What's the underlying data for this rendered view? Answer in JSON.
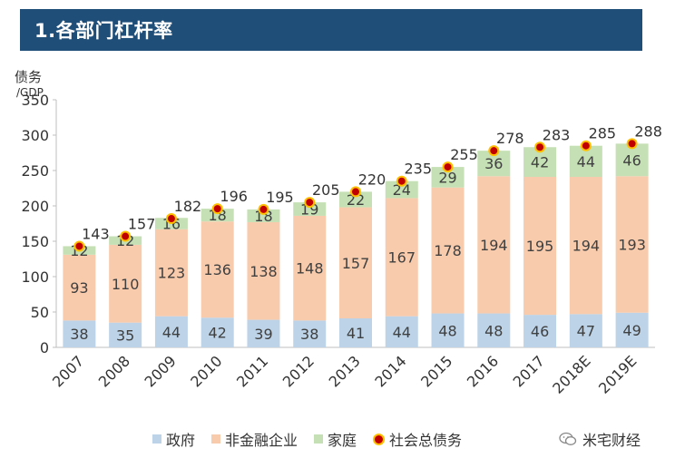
{
  "header": {
    "title": "1.各部门杠杆率"
  },
  "watermark": {
    "text": "米宅财经"
  },
  "chart_data": {
    "type": "bar",
    "stacked": true,
    "ylabel_line1": "债务",
    "ylabel_line2": "/GDP",
    "ylim": [
      0,
      350
    ],
    "yticks": [
      0,
      50,
      100,
      150,
      200,
      250,
      300,
      350
    ],
    "categories": [
      "2007",
      "2008",
      "2009",
      "2010",
      "2011",
      "2012",
      "2013",
      "2014",
      "2015",
      "2016",
      "2017",
      "2018E",
      "2019E"
    ],
    "series": [
      {
        "name": "政府",
        "color": "#bcd3e8",
        "values": [
          38,
          35,
          44,
          42,
          39,
          38,
          41,
          44,
          48,
          48,
          46,
          47,
          49
        ]
      },
      {
        "name": "非金融企业",
        "color": "#f8cbad",
        "values": [
          93,
          110,
          123,
          136,
          138,
          148,
          157,
          167,
          178,
          194,
          195,
          194,
          193
        ]
      },
      {
        "name": "家庭",
        "color": "#c5e0b4",
        "values": [
          12,
          12,
          16,
          18,
          18,
          19,
          22,
          24,
          29,
          36,
          42,
          44,
          46
        ]
      }
    ],
    "total_series": {
      "name": "社会总债务",
      "color": "#c00000",
      "edge_color": "#ffc000",
      "values": [
        143,
        157,
        182,
        196,
        195,
        205,
        220,
        235,
        255,
        278,
        283,
        285,
        288
      ]
    },
    "grid": false,
    "legend": "bottom"
  }
}
